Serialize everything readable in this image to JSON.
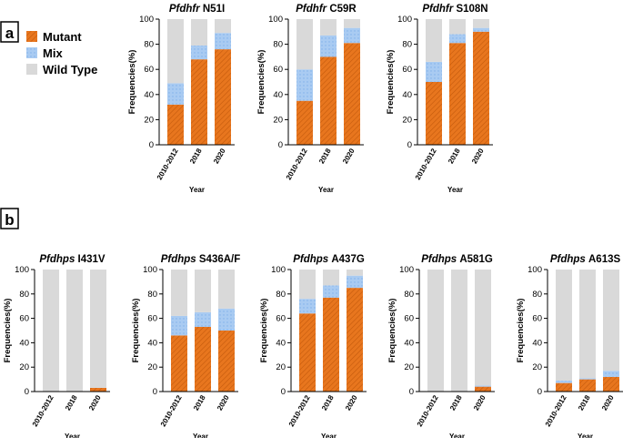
{
  "panel_labels": {
    "a": "a",
    "b": "b"
  },
  "legend": {
    "items": [
      {
        "name": "Mutant",
        "color": "#e8761e"
      },
      {
        "name": "Mix",
        "color": "#a9cbf2"
      },
      {
        "name": "Wild Type",
        "color": "#d9d9d9"
      }
    ]
  },
  "chart_data": [
    {
      "type": "bar",
      "stacked": true,
      "panel": "a",
      "title": {
        "gene": "Pfdhfr",
        "mutation": "N51I"
      },
      "categories": [
        "2010-2012",
        "2018",
        "2020"
      ],
      "series": [
        {
          "name": "Mutant",
          "values": [
            32,
            68,
            76
          ]
        },
        {
          "name": "Mix",
          "values": [
            17,
            11,
            13
          ]
        },
        {
          "name": "Wild Type",
          "values": [
            51,
            21,
            11
          ]
        }
      ],
      "xlabel": "Year",
      "ylabel": "Frequencies(%)",
      "ylim": [
        0,
        100
      ],
      "yticks": [
        "0",
        "20",
        "40",
        "60",
        "80",
        "100"
      ]
    },
    {
      "type": "bar",
      "stacked": true,
      "panel": "a",
      "title": {
        "gene": "Pfdhfr",
        "mutation": "C59R"
      },
      "categories": [
        "2010-2012",
        "2018",
        "2020"
      ],
      "series": [
        {
          "name": "Mutant",
          "values": [
            35,
            70,
            81
          ]
        },
        {
          "name": "Mix",
          "values": [
            25,
            17,
            12
          ]
        },
        {
          "name": "Wild Type",
          "values": [
            40,
            13,
            7
          ]
        }
      ],
      "xlabel": "Year",
      "ylabel": "Frequencies(%)",
      "ylim": [
        0,
        100
      ],
      "yticks": [
        "0",
        "20",
        "40",
        "60",
        "80",
        "100"
      ]
    },
    {
      "type": "bar",
      "stacked": true,
      "panel": "a",
      "title": {
        "gene": "Pfdhfr",
        "mutation": "S108N"
      },
      "categories": [
        "2010-2012",
        "2018",
        "2020"
      ],
      "series": [
        {
          "name": "Mutant",
          "values": [
            50,
            81,
            90
          ]
        },
        {
          "name": "Mix",
          "values": [
            16,
            7,
            3
          ]
        },
        {
          "name": "Wild Type",
          "values": [
            34,
            12,
            7
          ]
        }
      ],
      "xlabel": "Year",
      "ylabel": "Frequencies(%)",
      "ylim": [
        0,
        100
      ],
      "yticks": [
        "0",
        "20",
        "40",
        "60",
        "80",
        "100"
      ]
    },
    {
      "type": "bar",
      "stacked": true,
      "panel": "b",
      "title": {
        "gene": "Pfdhps",
        "mutation": "I431V"
      },
      "categories": [
        "2010-2012",
        "2018",
        "2020"
      ],
      "series": [
        {
          "name": "Mutant",
          "values": [
            0,
            0,
            3
          ]
        },
        {
          "name": "Mix",
          "values": [
            0,
            0,
            0
          ]
        },
        {
          "name": "Wild Type",
          "values": [
            100,
            100,
            97
          ]
        }
      ],
      "xlabel": "Year",
      "ylabel": "Frequencies(%)",
      "ylim": [
        0,
        100
      ],
      "yticks": [
        "0",
        "20",
        "40",
        "60",
        "80",
        "100"
      ]
    },
    {
      "type": "bar",
      "stacked": true,
      "panel": "b",
      "title": {
        "gene": "Pfdhps",
        "mutation": "S436A/F"
      },
      "categories": [
        "2010-2012",
        "2018",
        "2020"
      ],
      "series": [
        {
          "name": "Mutant",
          "values": [
            46,
            53,
            50
          ]
        },
        {
          "name": "Mix",
          "values": [
            16,
            12,
            18
          ]
        },
        {
          "name": "Wild Type",
          "values": [
            38,
            35,
            32
          ]
        }
      ],
      "xlabel": "Year",
      "ylabel": "Frequencies(%)",
      "ylim": [
        0,
        100
      ],
      "yticks": [
        "0",
        "20",
        "40",
        "60",
        "80",
        "100"
      ]
    },
    {
      "type": "bar",
      "stacked": true,
      "panel": "b",
      "title": {
        "gene": "Pfdhps",
        "mutation": "A437G"
      },
      "categories": [
        "2010-2012",
        "2018",
        "2020"
      ],
      "series": [
        {
          "name": "Mutant",
          "values": [
            64,
            77,
            85
          ]
        },
        {
          "name": "Mix",
          "values": [
            12,
            10,
            10
          ]
        },
        {
          "name": "Wild Type",
          "values": [
            24,
            13,
            5
          ]
        }
      ],
      "xlabel": "Year",
      "ylabel": "Frequencies(%)",
      "ylim": [
        0,
        100
      ],
      "yticks": [
        "0",
        "20",
        "40",
        "60",
        "80",
        "100"
      ]
    },
    {
      "type": "bar",
      "stacked": true,
      "panel": "b",
      "title": {
        "gene": "Pfdhps",
        "mutation": "A581G"
      },
      "categories": [
        "2010-2012",
        "2018",
        "2020"
      ],
      "series": [
        {
          "name": "Mutant",
          "values": [
            0,
            0,
            4
          ]
        },
        {
          "name": "Mix",
          "values": [
            0,
            0,
            1
          ]
        },
        {
          "name": "Wild Type",
          "values": [
            100,
            100,
            95
          ]
        }
      ],
      "xlabel": "Year",
      "ylabel": "Frequencies(%)",
      "ylim": [
        0,
        100
      ],
      "yticks": [
        "0",
        "20",
        "40",
        "60",
        "80",
        "100"
      ]
    },
    {
      "type": "bar",
      "stacked": true,
      "panel": "b",
      "title": {
        "gene": "Pfdhps",
        "mutation": "A613S"
      },
      "categories": [
        "2010-2012",
        "2018",
        "2020"
      ],
      "series": [
        {
          "name": "Mutant",
          "values": [
            7,
            10,
            12
          ]
        },
        {
          "name": "Mix",
          "values": [
            2,
            1,
            5
          ]
        },
        {
          "name": "Wild Type",
          "values": [
            91,
            89,
            83
          ]
        }
      ],
      "xlabel": "Year",
      "ylabel": "Frequencies(%)",
      "ylim": [
        0,
        100
      ],
      "yticks": [
        "0",
        "20",
        "40",
        "60",
        "80",
        "100"
      ]
    }
  ]
}
